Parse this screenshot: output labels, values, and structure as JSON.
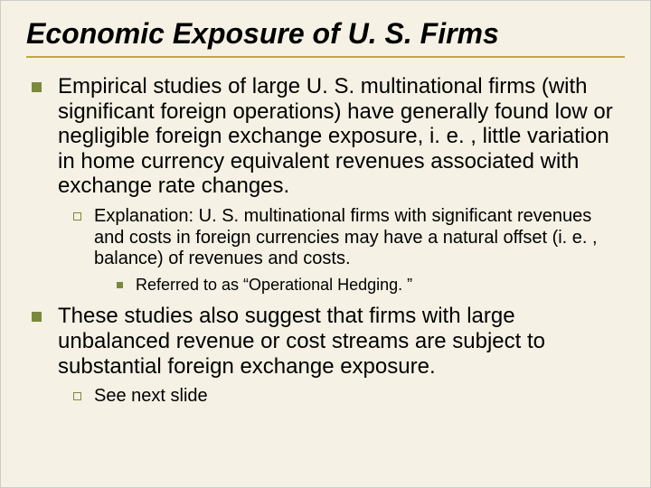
{
  "title": "Economic Exposure of U. S. Firms",
  "bullets": {
    "b1": "Empirical studies of large U. S. multinational firms (with significant foreign operations) have generally found low or negligible foreign exchange exposure, i. e. , little variation in home currency equivalent revenues associated with exchange rate changes.",
    "b1a": "Explanation: U. S. multinational firms with significant revenues and costs in foreign currencies may have a natural offset (i. e. , balance) of revenues and costs.",
    "b1a1": "Referred to as “Operational Hedging. ”",
    "b2": "These studies also suggest that firms with large unbalanced revenue or cost streams are subject to substantial foreign exchange exposure.",
    "b2a": "See next slide"
  },
  "colors": {
    "background": "#f5f1e4",
    "rule": "#bfa84a",
    "bullet": "#7a8a3a",
    "text": "#000000"
  },
  "fonts": {
    "title_size": 32,
    "l1_size": 24,
    "l2_size": 20,
    "l3_size": 18
  }
}
